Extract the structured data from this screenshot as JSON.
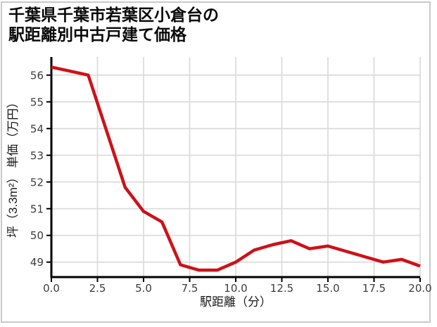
{
  "title": {
    "line1": "千葉県千葉市若葉区小倉台の",
    "line2": "駅距離別中古戸建て価格"
  },
  "chart_data": {
    "type": "line",
    "title": "千葉県千葉市若葉区小倉台の駅距離別中古戸建て価格",
    "xlabel": "駅距離（分）",
    "ylabel": "坪（3.3m²） 単価（万円）",
    "x": [
      0,
      1,
      2,
      3,
      4,
      5,
      6,
      7,
      8,
      9,
      10,
      11,
      12,
      13,
      14,
      15,
      16,
      17,
      18,
      19,
      20
    ],
    "values": [
      56.3,
      56.15,
      56.0,
      53.9,
      51.8,
      50.9,
      50.5,
      48.9,
      48.7,
      48.7,
      49.0,
      49.45,
      49.65,
      49.8,
      49.5,
      49.6,
      49.4,
      49.2,
      49.0,
      49.1,
      48.85
    ],
    "xlim": [
      0,
      20
    ],
    "ylim": [
      48.44,
      56.68
    ],
    "x_ticks": [
      0,
      2.5,
      5,
      7.5,
      10,
      12.5,
      15,
      17.5,
      20
    ],
    "x_tick_labels": [
      "0.0",
      "2.5",
      "5.0",
      "7.5",
      "10.0",
      "12.5",
      "15.0",
      "17.5",
      "20.0"
    ],
    "y_ticks": [
      49,
      50,
      51,
      52,
      53,
      54,
      55,
      56
    ],
    "y_tick_labels": [
      "49",
      "50",
      "51",
      "52",
      "53",
      "54",
      "55",
      "56"
    ],
    "grid": true,
    "legend": "none",
    "line_color": "#cd1118",
    "grid_color": "#dcdcdc",
    "axis_color": "#000000",
    "tick_label_color": "#3c3c3c"
  }
}
